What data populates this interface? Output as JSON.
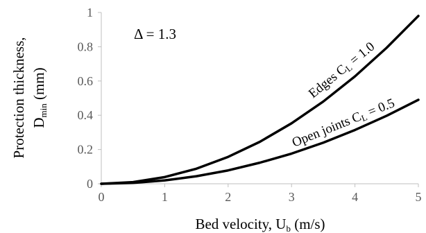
{
  "chart_data": {
    "type": "line",
    "xlabel": {
      "main": "Bed velocity, U",
      "sub": "b",
      "unit": " (m/s)"
    },
    "ylabel": {
      "line1": "Protection thickness,",
      "main": "D",
      "sub": "min",
      "unit": " (mm)"
    },
    "xlim": [
      0,
      5
    ],
    "ylim": [
      0,
      1
    ],
    "x_ticks": [
      "0",
      "1",
      "2",
      "3",
      "4",
      "5"
    ],
    "y_ticks": [
      "0",
      "0.2",
      "0.4",
      "0.6",
      "0.8",
      "1"
    ],
    "grid": false,
    "annotation": "Δ = 1.3",
    "series": [
      {
        "name": "Edges CL = 1.0",
        "label_parts": {
          "pre": "Edges C",
          "sub": "L",
          "post": " = 1.0"
        },
        "x": [
          0,
          0.5,
          1,
          1.5,
          2,
          2.5,
          3,
          3.5,
          4,
          4.5,
          5
        ],
        "values": [
          0,
          0.0098,
          0.039,
          0.088,
          0.157,
          0.245,
          0.353,
          0.48,
          0.627,
          0.794,
          0.98
        ],
        "color": "#000000"
      },
      {
        "name": "Open joints CL = 0.5",
        "label_parts": {
          "pre": "Open joints C",
          "sub": "L",
          "post": " = 0.5"
        },
        "x": [
          0,
          0.5,
          1,
          1.5,
          2,
          2.5,
          3,
          3.5,
          4,
          4.5,
          5
        ],
        "values": [
          0,
          0.0049,
          0.0196,
          0.044,
          0.078,
          0.123,
          0.176,
          0.24,
          0.314,
          0.397,
          0.49
        ],
        "color": "#000000"
      }
    ]
  }
}
